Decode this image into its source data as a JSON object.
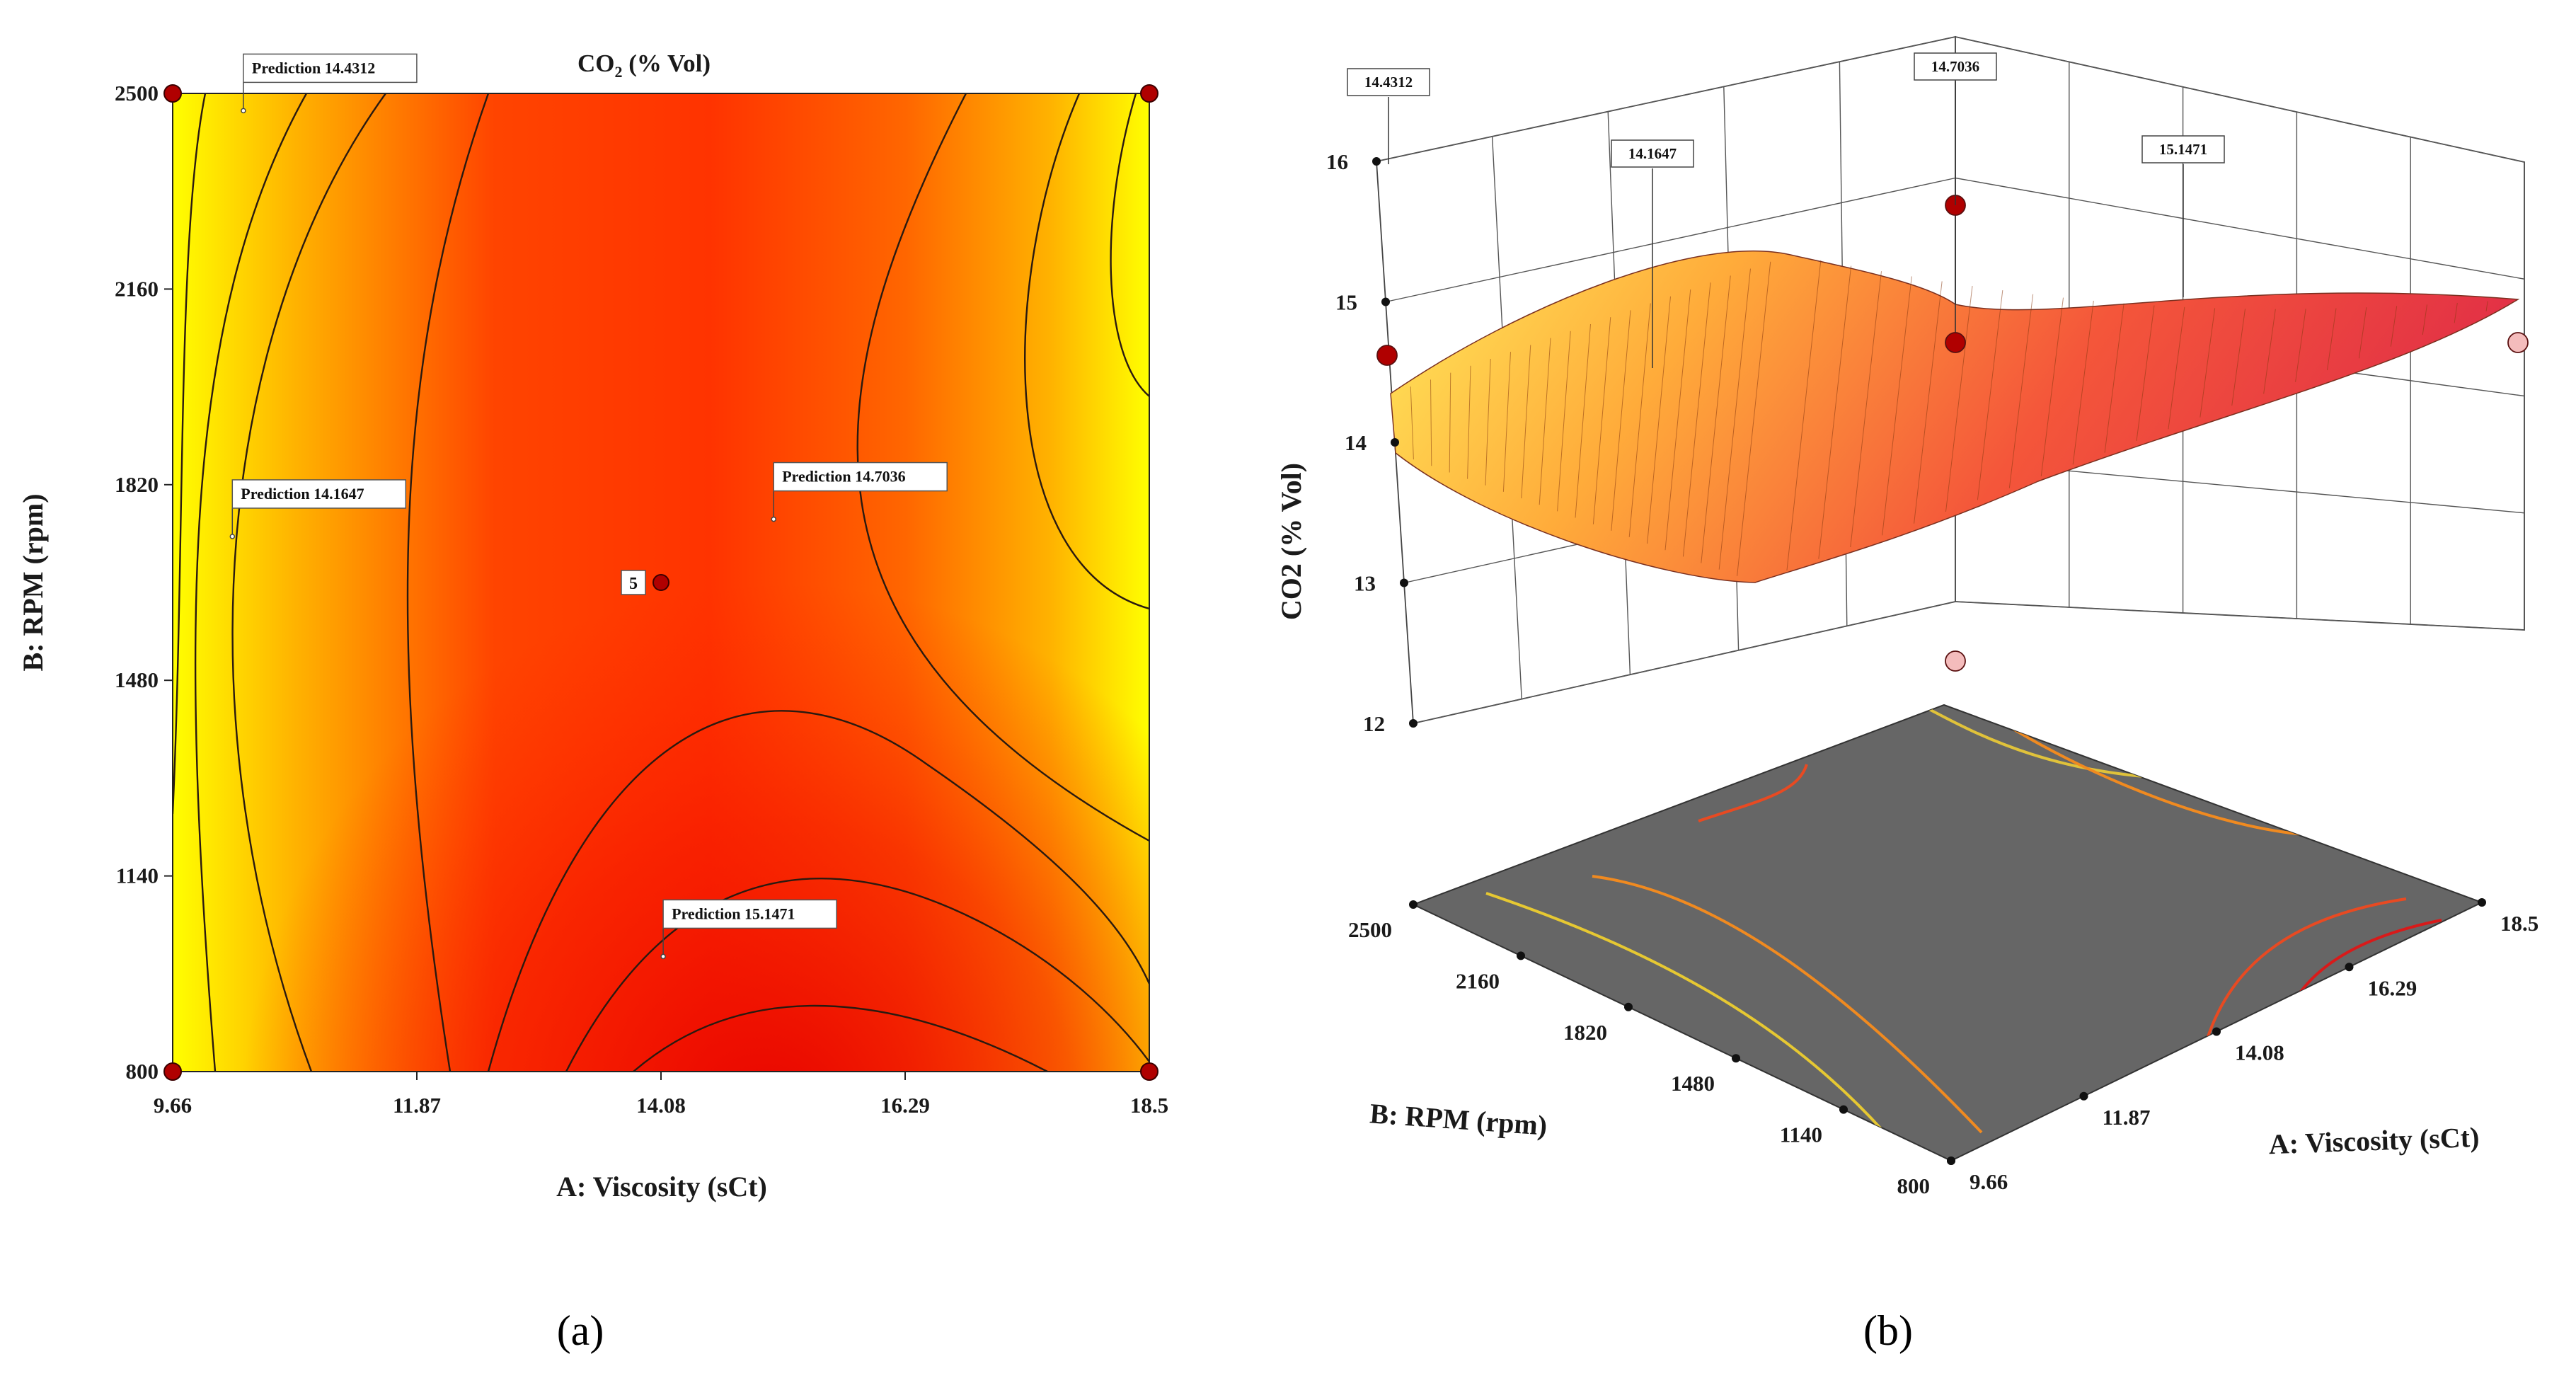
{
  "figure": {
    "panel_a_label": "(a)",
    "panel_b_label": "(b)"
  },
  "chart_data": [
    {
      "type": "heatmap",
      "subtype": "contour",
      "title": "CO2 (% Vol)",
      "xlabel": "A: Viscosity (sCt)",
      "ylabel": "B: RPM (rpm)",
      "xlim": [
        9.66,
        18.5
      ],
      "ylim": [
        800,
        2500
      ],
      "x_ticks": [
        "9.66",
        "11.87",
        "14.08",
        "16.29",
        "18.5"
      ],
      "y_ticks": [
        "800",
        "1140",
        "1480",
        "1820",
        "2160",
        "2500"
      ],
      "design_points": [
        {
          "x": 9.66,
          "y": 2500
        },
        {
          "x": 18.5,
          "y": 2500
        },
        {
          "x": 9.66,
          "y": 800
        },
        {
          "x": 18.5,
          "y": 800
        },
        {
          "x": 14.08,
          "y": 1650,
          "label": "5"
        }
      ],
      "predictions": [
        {
          "text": "Prediction  14.4312",
          "x": 10.3,
          "y": 2470
        },
        {
          "text": "Prediction  14.1647",
          "x": 10.2,
          "y": 1730
        },
        {
          "text": "Prediction  14.7036",
          "x": 15.1,
          "y": 1760
        },
        {
          "text": "Prediction  15.1471",
          "x": 14.1,
          "y": 1000
        }
      ],
      "colormap": [
        "#ffff00",
        "#ffa500",
        "#ff3300",
        "#ee0000"
      ]
    },
    {
      "type": "surface3d",
      "zlabel": "CO2 (% Vol)",
      "xlabel": "A: Viscosity (sCt)",
      "ylabel": "B: RPM (rpm)",
      "x_ticks": [
        "9.66",
        "11.87",
        "14.08",
        "16.29",
        "18.5"
      ],
      "y_ticks": [
        "800",
        "1140",
        "1480",
        "1820",
        "2160",
        "2500"
      ],
      "z_ticks": [
        "12",
        "13",
        "14",
        "15",
        "16"
      ],
      "zlim": [
        12,
        16
      ],
      "callouts": [
        "14.4312",
        "14.7036",
        "14.1647",
        "15.1471"
      ],
      "floor_color": "#666666"
    }
  ]
}
